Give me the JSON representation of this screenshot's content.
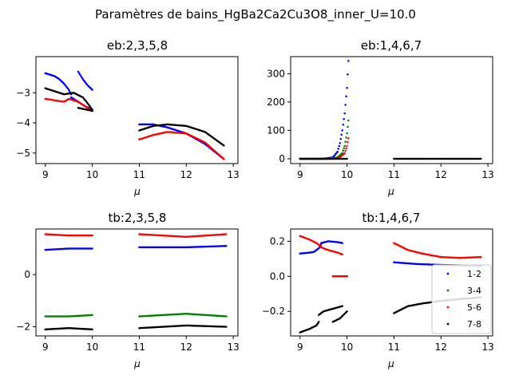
{
  "figure": {
    "title": "Paramètres de bains_HgBa2Ca2Cu3O8_inner_U=10.0"
  },
  "colors": {
    "series_1_2": "#0000ff",
    "series_3_4": "#008000",
    "series_5_6": "#ff0000",
    "series_7_8": "#000000"
  },
  "legend": {
    "entries": [
      "1-2",
      "3-4",
      "5-6",
      "7-8"
    ],
    "location": "lower-right of tb:1,4,6,7"
  },
  "chart_data": [
    {
      "type": "scatter",
      "title": "eb:2,3,5,8",
      "xlabel": "μ",
      "ylabel": "",
      "xlim": [
        8.8,
        13.1
      ],
      "ylim": [
        -5.35,
        -1.8
      ],
      "xticks": [
        "9",
        "10",
        "11",
        "12",
        "13"
      ],
      "yticks": [
        "−3",
        "−4",
        "−5"
      ],
      "series": [
        {
          "name": "1-2",
          "color": "#0000ff",
          "segments": [
            {
              "x": [
                9.0,
                9.1,
                9.2,
                9.3,
                9.4,
                9.5,
                9.55
              ],
              "y": [
                -2.35,
                -2.4,
                -2.45,
                -2.55,
                -2.7,
                -2.9,
                -3.05
              ]
            },
            {
              "x": [
                9.55,
                9.7,
                9.85,
                10.0
              ],
              "y": [
                -3.15,
                -3.3,
                -3.45,
                -3.55
              ]
            },
            {
              "x": [
                9.7,
                9.8,
                9.9,
                10.0
              ],
              "y": [
                -2.3,
                -2.55,
                -2.75,
                -2.9
              ]
            },
            {
              "x": [
                11.0,
                11.3,
                11.6,
                12.0,
                12.4,
                12.8
              ],
              "y": [
                -4.05,
                -4.05,
                -4.15,
                -4.35,
                -4.7,
                -5.2
              ]
            }
          ]
        },
        {
          "name": "5-6",
          "color": "#ff0000",
          "segments": [
            {
              "x": [
                9.0,
                9.2,
                9.4,
                9.5,
                9.7,
                9.85,
                10.0
              ],
              "y": [
                -3.2,
                -3.25,
                -3.3,
                -3.2,
                -3.3,
                -3.45,
                -3.6
              ]
            },
            {
              "x": [
                11.0,
                11.3,
                11.6,
                12.0,
                12.4,
                12.8
              ],
              "y": [
                -4.55,
                -4.4,
                -4.3,
                -4.35,
                -4.65,
                -5.2
              ]
            }
          ]
        },
        {
          "name": "7-8",
          "color": "#000000",
          "segments": [
            {
              "x": [
                9.0,
                9.2,
                9.4,
                9.6,
                9.8,
                9.95,
                10.0
              ],
              "y": [
                -2.85,
                -2.95,
                -3.05,
                -3.0,
                -3.15,
                -3.45,
                -3.6
              ]
            },
            {
              "x": [
                9.7,
                9.85,
                10.0
              ],
              "y": [
                -3.5,
                -3.55,
                -3.6
              ]
            },
            {
              "x": [
                11.0,
                11.3,
                11.6,
                12.0,
                12.4,
                12.8
              ],
              "y": [
                -4.25,
                -4.1,
                -4.05,
                -4.1,
                -4.3,
                -4.75
              ]
            }
          ]
        }
      ]
    },
    {
      "type": "scatter",
      "title": "eb:1,4,6,7",
      "xlabel": "μ",
      "ylabel": "",
      "xlim": [
        8.8,
        13.1
      ],
      "ylim": [
        -17,
        360
      ],
      "xticks": [
        "9",
        "10",
        "11",
        "12",
        "13"
      ],
      "yticks": [
        "0",
        "100",
        "200",
        "300"
      ],
      "series": [
        {
          "name": "1-2",
          "color": "#0000ff",
          "segments": [
            {
              "x": [
                9.0,
                9.5,
                9.7,
                9.8,
                9.85,
                9.9,
                9.95,
                10.0,
                10.03
              ],
              "y": [
                0,
                0,
                5,
                25,
                55,
                100,
                160,
                250,
                345
              ]
            }
          ]
        },
        {
          "name": "3-4",
          "color": "#008000",
          "segments": [
            {
              "x": [
                9.0,
                9.6,
                9.8,
                9.9,
                9.95,
                10.0,
                10.03
              ],
              "y": [
                0,
                0,
                5,
                20,
                45,
                90,
                135
              ]
            }
          ]
        },
        {
          "name": "5-6",
          "color": "#ff0000",
          "segments": [
            {
              "x": [
                9.0,
                9.7,
                9.85,
                9.95,
                10.0,
                10.03
              ],
              "y": [
                0,
                0,
                5,
                20,
                45,
                72
              ]
            }
          ]
        },
        {
          "name": "7-8",
          "color": "#000000",
          "segments": [
            {
              "x": [
                9.0,
                9.5,
                10.0
              ],
              "y": [
                0,
                0,
                0
              ]
            },
            {
              "x": [
                11.0,
                12.0,
                12.85
              ],
              "y": [
                0,
                0,
                0
              ]
            }
          ]
        }
      ]
    },
    {
      "type": "scatter",
      "title": "tb:2,3,5,8",
      "xlabel": "μ",
      "ylabel": "",
      "xlim": [
        8.8,
        13.1
      ],
      "ylim": [
        -2.35,
        1.75
      ],
      "xticks": [
        "9",
        "10",
        "11",
        "12",
        "13"
      ],
      "yticks": [
        "0",
        "−2"
      ],
      "series": [
        {
          "name": "1-2",
          "color": "#0000ff",
          "segments": [
            {
              "x": [
                9.0,
                9.5,
                10.0
              ],
              "y": [
                0.95,
                1.0,
                1.0
              ]
            },
            {
              "x": [
                11.0,
                12.0,
                12.85
              ],
              "y": [
                1.05,
                1.05,
                1.1
              ]
            }
          ]
        },
        {
          "name": "3-4",
          "color": "#008000",
          "segments": [
            {
              "x": [
                9.0,
                9.5,
                10.0
              ],
              "y": [
                -1.6,
                -1.6,
                -1.55
              ]
            },
            {
              "x": [
                11.0,
                12.0,
                12.85
              ],
              "y": [
                -1.6,
                -1.5,
                -1.6
              ]
            }
          ]
        },
        {
          "name": "5-6",
          "color": "#ff0000",
          "segments": [
            {
              "x": [
                9.0,
                9.5,
                10.0
              ],
              "y": [
                1.55,
                1.5,
                1.5
              ]
            },
            {
              "x": [
                11.0,
                12.0,
                12.85
              ],
              "y": [
                1.55,
                1.45,
                1.55
              ]
            }
          ]
        },
        {
          "name": "7-8",
          "color": "#000000",
          "segments": [
            {
              "x": [
                9.0,
                9.5,
                10.0
              ],
              "y": [
                -2.1,
                -2.05,
                -2.1
              ]
            },
            {
              "x": [
                11.0,
                12.0,
                12.85
              ],
              "y": [
                -2.05,
                -1.95,
                -2.0
              ]
            }
          ]
        }
      ]
    },
    {
      "type": "scatter",
      "title": "tb:1,4,6,7",
      "xlabel": "μ",
      "ylabel": "",
      "xlim": [
        8.8,
        13.1
      ],
      "ylim": [
        -0.34,
        0.27
      ],
      "xticks": [
        "9",
        "10",
        "11",
        "12",
        "13"
      ],
      "yticks": [
        "0.2",
        "0.0",
        "−0.2"
      ],
      "series": [
        {
          "name": "1-2",
          "color": "#0000ff",
          "segments": [
            {
              "x": [
                9.0,
                9.2,
                9.3,
                9.4,
                9.45
              ],
              "y": [
                0.13,
                0.135,
                0.14,
                0.16,
                0.185
              ]
            },
            {
              "x": [
                9.45,
                9.6,
                9.8,
                9.9
              ],
              "y": [
                0.19,
                0.2,
                0.195,
                0.19
              ]
            },
            {
              "x": [
                11.0,
                11.5,
                12.0,
                12.85
              ],
              "y": [
                0.08,
                0.07,
                0.065,
                0.06
              ]
            }
          ]
        },
        {
          "name": "3-4",
          "color": "#008000",
          "segments": [
            {
              "x": [
                9.7,
                10.0
              ],
              "y": [
                0.0,
                0.0
              ]
            }
          ]
        },
        {
          "name": "5-6",
          "color": "#ff0000",
          "segments": [
            {
              "x": [
                9.0,
                9.2,
                9.35,
                9.45
              ],
              "y": [
                0.23,
                0.21,
                0.19,
                0.17
              ]
            },
            {
              "x": [
                9.45,
                9.6,
                9.8,
                9.9
              ],
              "y": [
                0.165,
                0.15,
                0.135,
                0.125
              ]
            },
            {
              "x": [
                9.7,
                9.85,
                10.0
              ],
              "y": [
                0.0,
                0.0,
                0.0
              ]
            },
            {
              "x": [
                11.0,
                11.3,
                11.6,
                12.0,
                12.4,
                12.85
              ],
              "y": [
                0.19,
                0.15,
                0.13,
                0.11,
                0.105,
                0.11
              ]
            }
          ]
        },
        {
          "name": "7-8",
          "color": "#000000",
          "segments": [
            {
              "x": [
                9.0,
                9.2,
                9.35,
                9.4
              ],
              "y": [
                -0.32,
                -0.3,
                -0.28,
                -0.26
              ]
            },
            {
              "x": [
                9.4,
                9.5,
                9.7,
                9.9
              ],
              "y": [
                -0.22,
                -0.2,
                -0.185,
                -0.17
              ]
            },
            {
              "x": [
                9.7,
                9.85,
                10.0
              ],
              "y": [
                -0.26,
                -0.24,
                -0.2
              ]
            },
            {
              "x": [
                11.0,
                11.3,
                11.6,
                12.0,
                12.4,
                12.85
              ],
              "y": [
                -0.21,
                -0.17,
                -0.155,
                -0.14,
                -0.13,
                -0.12
              ]
            }
          ]
        }
      ]
    }
  ]
}
